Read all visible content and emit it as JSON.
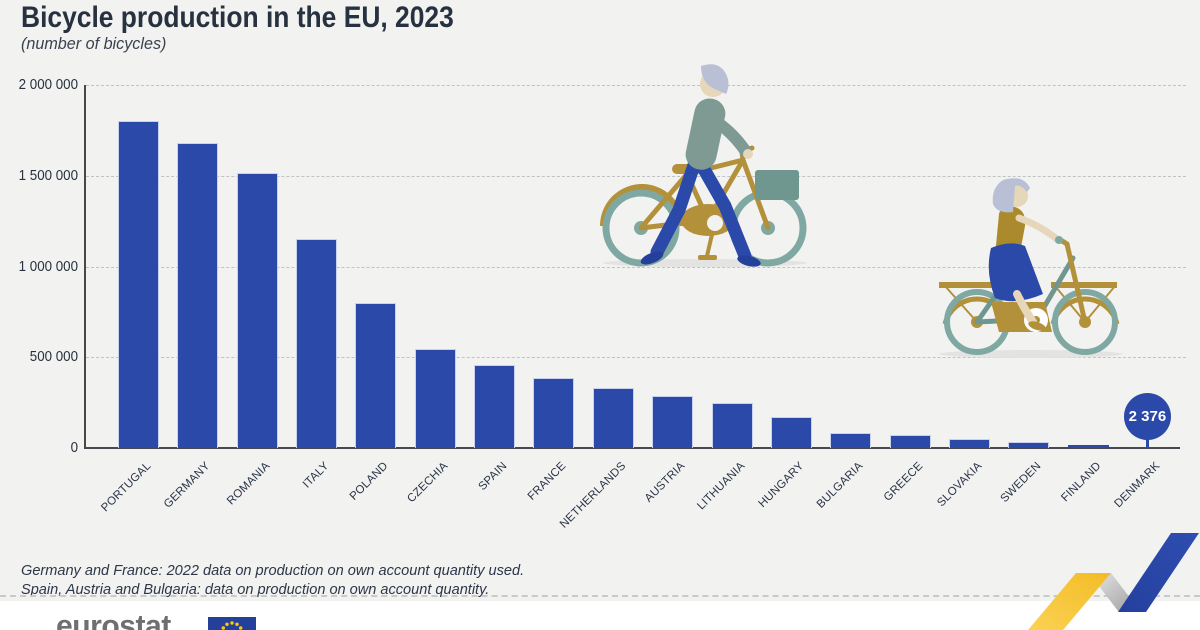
{
  "header": {
    "title": "Bicycle production in the EU, 2023",
    "subtitle": "(number of bicycles)"
  },
  "chart_data": {
    "type": "bar",
    "title": "Bicycle production in the EU, 2023",
    "subtitle": "(number of bicycles)",
    "categories": [
      "PORTUGAL",
      "GERMANY",
      "ROMANIA",
      "ITALY",
      "POLAND",
      "CZECHIA",
      "SPAIN",
      "FRANCE",
      "NETHERLANDS",
      "AUSTRIA",
      "LITHUANIA",
      "HUNGARY",
      "BULGARIA",
      "GREECE",
      "SLOVAKIA",
      "SWEDEN",
      "FINLAND",
      "DENMARK"
    ],
    "values": [
      1800000,
      1680000,
      1515000,
      1150000,
      800000,
      545000,
      460000,
      385000,
      330000,
      285000,
      250000,
      170000,
      80000,
      72000,
      52000,
      32000,
      18000,
      2376
    ],
    "xlabel": "",
    "ylabel": "number of bicycles",
    "ylim": [
      0,
      2000000
    ],
    "yticks": [
      {
        "value": 0,
        "label": "0"
      },
      {
        "value": 500000,
        "label": "500 000"
      },
      {
        "value": 1000000,
        "label": "1 000 000"
      },
      {
        "value": 1500000,
        "label": "1 500 000"
      },
      {
        "value": 2000000,
        "label": "2 000 000"
      }
    ],
    "grid": "horizontal-dashed",
    "legend": "none",
    "bar_color": "#2b49a8",
    "annotations": [
      {
        "category": "DENMARK",
        "value": 2376,
        "label": "2 376",
        "style": "circle-badge"
      }
    ]
  },
  "footnotes": {
    "line1": "Germany and France: 2022 data on production on own account quantity used.",
    "line2": "Spain, Austria and Bulgaria: data on production on own account quantity."
  },
  "footer": {
    "logo_text": "eurostat"
  },
  "colors": {
    "background": "#f2f2f1",
    "bar": "#2b49a8",
    "bar_edge": "#c9d1ee",
    "text": "#27313f",
    "axis": "#45484c",
    "grid": "#c2c2c2",
    "badge": "#2b49a8",
    "badge_text": "#ffffff",
    "footer_bg": "#ffffff",
    "logo_text": "#6e6f71",
    "flag_blue": "#24409a",
    "star_yellow": "#ffcc00",
    "zig_yellow": "#f4c02f",
    "zig_gray": "#bdbdbd",
    "zig_blue": "#2b49a8",
    "illustration_teal": "#7ea8a1",
    "illustration_gold": "#b3913b",
    "illustration_sage": "#7e9a93",
    "illustration_mustard": "#ab8a2e",
    "illustration_blue": "#2b49a8",
    "illustration_skin": "#e6d6ba",
    "illustration_hair": "#b9bfd4"
  }
}
